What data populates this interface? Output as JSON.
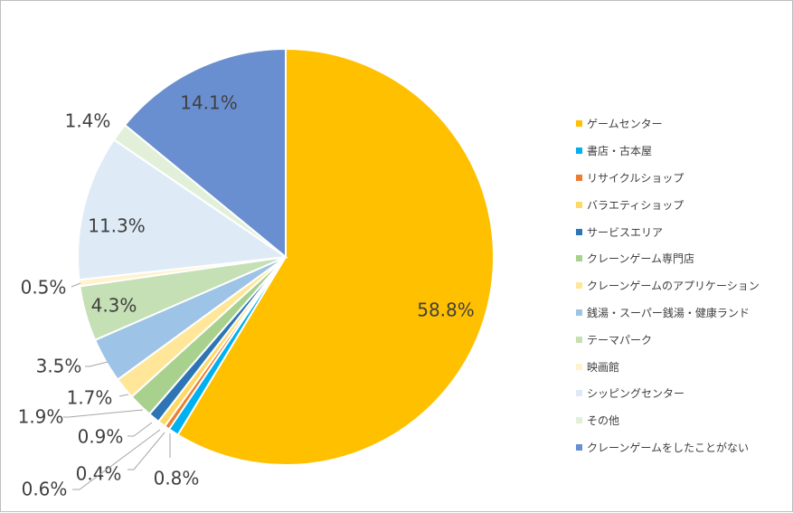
{
  "chart_data": {
    "type": "pie",
    "categories": [
      "ゲームセンター",
      "書店・古本屋",
      "リサイクルショップ",
      "バラエティショップ",
      "サービスエリア",
      "クレーンゲーム専門店",
      "クレーンゲームのアプリケーション",
      "銭湯・スーパー銭湯・健康ランド",
      "テーマパーク",
      "映画館",
      "シッピングセンター",
      "その他",
      "クレーンゲームをしたことがない"
    ],
    "values": [
      58.8,
      0.8,
      0.4,
      0.6,
      0.9,
      1.9,
      1.7,
      3.5,
      4.3,
      0.5,
      11.3,
      1.4,
      14.1
    ],
    "labels": [
      "58.8%",
      "0.8%",
      "0.4%",
      "0.6%",
      "0.9%",
      "1.9%",
      "1.7%",
      "3.5%",
      "4.3%",
      "0.5%",
      "11.3%",
      "1.4%",
      "14.1%"
    ],
    "colors": [
      "#FFC000",
      "#00B0F0",
      "#ED7D31",
      "#FFD966",
      "#2E75B6",
      "#A9D18E",
      "#FFE699",
      "#9DC3E6",
      "#C5E0B4",
      "#FFF2CC",
      "#DEEBF7",
      "#E2F0D9",
      "#6A8FD0"
    ],
    "start_angle": "12 o'clock",
    "direction": "clockwise",
    "legend_position": "right"
  }
}
